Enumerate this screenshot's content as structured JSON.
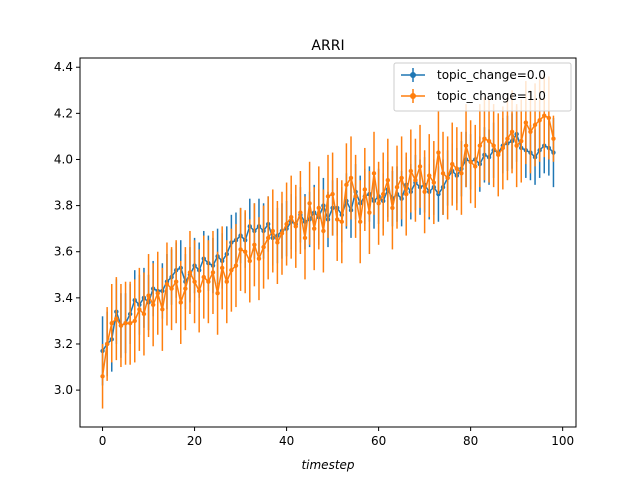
{
  "chart_data": {
    "type": "line",
    "title": "ARRI",
    "xlabel": "timestep",
    "ylabel": "",
    "xlim": [
      -4.9,
      102.9
    ],
    "ylim": [
      2.84,
      4.44
    ],
    "xticks": [
      0,
      20,
      40,
      60,
      80,
      100
    ],
    "yticks": [
      3.0,
      3.2,
      3.4,
      3.6,
      3.8,
      4.0,
      4.2,
      4.4
    ],
    "xtick_labels": [
      "0",
      "20",
      "40",
      "60",
      "80",
      "100"
    ],
    "ytick_labels": [
      "3.0",
      "3.2",
      "3.4",
      "3.6",
      "3.8",
      "4.0",
      "4.2",
      "4.4"
    ],
    "legend_position": "top-right",
    "error_bars": true,
    "series": [
      {
        "name": "topic_change=0.0",
        "color": "#1f77b4",
        "marker": "circle",
        "x": [
          0,
          1,
          2,
          3,
          4,
          5,
          6,
          7,
          8,
          9,
          10,
          11,
          12,
          13,
          14,
          15,
          16,
          17,
          18,
          19,
          20,
          21,
          22,
          23,
          24,
          25,
          26,
          27,
          28,
          29,
          30,
          31,
          32,
          33,
          34,
          35,
          36,
          37,
          38,
          39,
          40,
          41,
          42,
          43,
          44,
          45,
          46,
          47,
          48,
          49,
          50,
          51,
          52,
          53,
          54,
          55,
          56,
          57,
          58,
          59,
          60,
          61,
          62,
          63,
          64,
          65,
          66,
          67,
          68,
          69,
          70,
          71,
          72,
          73,
          74,
          75,
          76,
          77,
          78,
          79,
          80,
          81,
          82,
          83,
          84,
          85,
          86,
          87,
          88,
          89,
          90,
          91,
          92,
          93,
          94,
          95,
          96,
          97,
          98
        ],
        "y": [
          3.17,
          3.2,
          3.22,
          3.34,
          3.28,
          3.29,
          3.33,
          3.39,
          3.37,
          3.4,
          3.38,
          3.44,
          3.43,
          3.43,
          3.47,
          3.49,
          3.52,
          3.53,
          3.47,
          3.5,
          3.54,
          3.52,
          3.57,
          3.55,
          3.54,
          3.58,
          3.56,
          3.59,
          3.64,
          3.65,
          3.67,
          3.65,
          3.71,
          3.69,
          3.71,
          3.69,
          3.72,
          3.66,
          3.67,
          3.69,
          3.7,
          3.73,
          3.72,
          3.76,
          3.73,
          3.74,
          3.77,
          3.75,
          3.8,
          3.74,
          3.79,
          3.79,
          3.76,
          3.82,
          3.78,
          3.86,
          3.81,
          3.84,
          3.85,
          3.82,
          3.84,
          3.82,
          3.87,
          3.83,
          3.85,
          3.83,
          3.89,
          3.86,
          3.9,
          3.88,
          3.89,
          3.86,
          3.88,
          3.85,
          3.88,
          3.92,
          3.95,
          3.93,
          3.96,
          4.0,
          3.99,
          4.0,
          3.98,
          4.02,
          4.01,
          4.04,
          4.03,
          4.06,
          4.07,
          4.08,
          4.11,
          4.05,
          4.04,
          4.03,
          4.01,
          4.04,
          4.06,
          4.05,
          4.03
        ],
        "err": [
          0.15,
          0.14,
          0.14,
          0.14,
          0.14,
          0.13,
          0.13,
          0.13,
          0.13,
          0.13,
          0.12,
          0.12,
          0.12,
          0.12,
          0.12,
          0.12,
          0.12,
          0.12,
          0.12,
          0.12,
          0.12,
          0.12,
          0.12,
          0.12,
          0.12,
          0.12,
          0.12,
          0.12,
          0.12,
          0.12,
          0.12,
          0.12,
          0.12,
          0.12,
          0.12,
          0.12,
          0.12,
          0.12,
          0.12,
          0.12,
          0.12,
          0.12,
          0.12,
          0.12,
          0.12,
          0.12,
          0.12,
          0.12,
          0.12,
          0.12,
          0.12,
          0.12,
          0.12,
          0.12,
          0.12,
          0.12,
          0.12,
          0.12,
          0.12,
          0.12,
          0.12,
          0.12,
          0.12,
          0.12,
          0.12,
          0.12,
          0.12,
          0.12,
          0.12,
          0.12,
          0.12,
          0.12,
          0.12,
          0.12,
          0.12,
          0.12,
          0.12,
          0.12,
          0.12,
          0.12,
          0.12,
          0.12,
          0.12,
          0.12,
          0.12,
          0.12,
          0.12,
          0.12,
          0.12,
          0.12,
          0.12,
          0.12,
          0.12,
          0.12,
          0.12,
          0.12,
          0.12,
          0.12,
          0.15
        ]
      },
      {
        "name": "topic_change=1.0",
        "color": "#ff7f0e",
        "marker": "circle",
        "x": [
          0,
          1,
          2,
          3,
          4,
          5,
          6,
          7,
          8,
          9,
          10,
          11,
          12,
          13,
          14,
          15,
          16,
          17,
          18,
          19,
          20,
          21,
          22,
          23,
          24,
          25,
          26,
          27,
          28,
          29,
          30,
          31,
          32,
          33,
          34,
          35,
          36,
          37,
          38,
          39,
          40,
          41,
          42,
          43,
          44,
          45,
          46,
          47,
          48,
          49,
          50,
          51,
          52,
          53,
          54,
          55,
          56,
          57,
          58,
          59,
          60,
          61,
          62,
          63,
          64,
          65,
          66,
          67,
          68,
          69,
          70,
          71,
          72,
          73,
          74,
          75,
          76,
          77,
          78,
          79,
          80,
          81,
          82,
          83,
          84,
          85,
          86,
          87,
          88,
          89,
          90,
          91,
          92,
          93,
          94,
          95,
          96,
          97,
          98
        ],
        "y": [
          3.06,
          3.2,
          3.29,
          3.31,
          3.28,
          3.29,
          3.29,
          3.3,
          3.35,
          3.33,
          3.41,
          3.37,
          3.42,
          3.35,
          3.46,
          3.44,
          3.47,
          3.38,
          3.44,
          3.51,
          3.47,
          3.43,
          3.49,
          3.47,
          3.51,
          3.42,
          3.53,
          3.47,
          3.52,
          3.54,
          3.61,
          3.6,
          3.56,
          3.63,
          3.57,
          3.62,
          3.66,
          3.69,
          3.64,
          3.68,
          3.72,
          3.75,
          3.71,
          3.77,
          3.66,
          3.81,
          3.7,
          3.79,
          3.69,
          3.84,
          3.85,
          3.74,
          3.73,
          3.89,
          3.92,
          3.84,
          3.73,
          3.87,
          3.77,
          3.94,
          3.81,
          3.85,
          3.91,
          3.79,
          3.88,
          3.92,
          3.85,
          3.95,
          3.91,
          3.97,
          3.86,
          3.93,
          3.9,
          4.03,
          3.94,
          3.92,
          3.98,
          3.96,
          3.94,
          4.06,
          3.99,
          3.97,
          4.06,
          4.09,
          4.08,
          4.06,
          4.02,
          4.05,
          4.09,
          4.12,
          4.06,
          4.08,
          4.16,
          4.12,
          4.15,
          4.17,
          4.19,
          4.18,
          4.09
        ],
        "err": [
          0.14,
          0.16,
          0.17,
          0.18,
          0.18,
          0.18,
          0.18,
          0.18,
          0.18,
          0.18,
          0.18,
          0.18,
          0.18,
          0.18,
          0.18,
          0.18,
          0.18,
          0.18,
          0.18,
          0.18,
          0.18,
          0.18,
          0.18,
          0.18,
          0.18,
          0.18,
          0.18,
          0.18,
          0.18,
          0.18,
          0.18,
          0.18,
          0.18,
          0.18,
          0.18,
          0.18,
          0.18,
          0.18,
          0.18,
          0.18,
          0.18,
          0.18,
          0.18,
          0.18,
          0.18,
          0.18,
          0.18,
          0.18,
          0.18,
          0.18,
          0.18,
          0.18,
          0.18,
          0.18,
          0.18,
          0.18,
          0.18,
          0.18,
          0.18,
          0.18,
          0.18,
          0.18,
          0.18,
          0.18,
          0.18,
          0.18,
          0.18,
          0.18,
          0.18,
          0.18,
          0.18,
          0.18,
          0.18,
          0.18,
          0.18,
          0.18,
          0.18,
          0.18,
          0.18,
          0.18,
          0.18,
          0.18,
          0.18,
          0.18,
          0.18,
          0.18,
          0.18,
          0.18,
          0.18,
          0.18,
          0.18,
          0.18,
          0.18,
          0.18,
          0.18,
          0.18,
          0.18,
          0.18,
          0.1
        ]
      }
    ]
  }
}
